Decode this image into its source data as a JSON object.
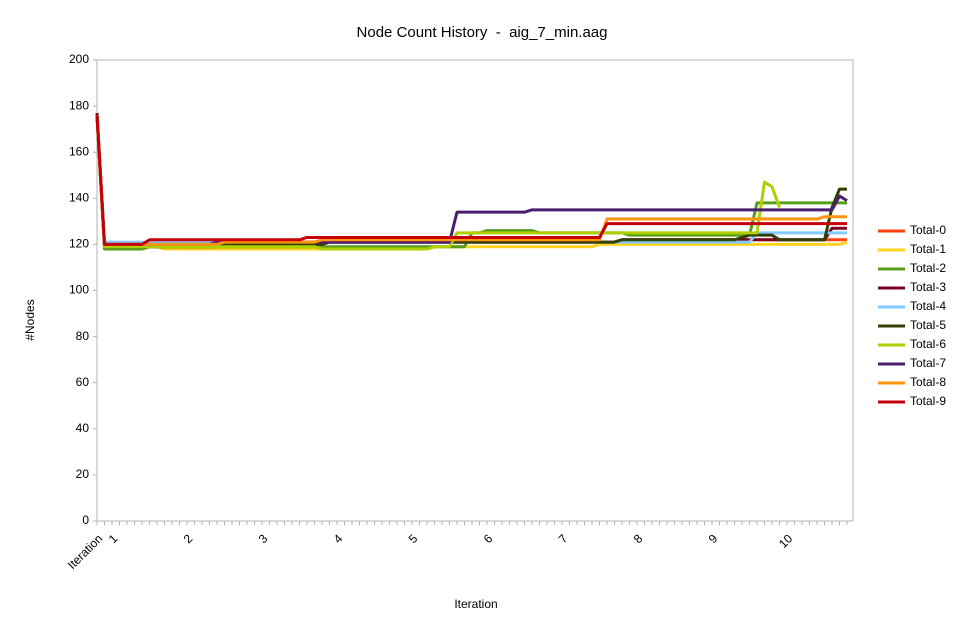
{
  "chart_data": {
    "type": "line",
    "title": "Node Count History  -  aig_7_min.aag",
    "x_label": "Iteration",
    "y_label": "#Nodes",
    "categories": [
      "Iteration",
      null,
      "1",
      null,
      null,
      null,
      null,
      null,
      null,
      null,
      null,
      null,
      "2",
      null,
      null,
      null,
      null,
      null,
      null,
      null,
      null,
      null,
      "3",
      null,
      null,
      null,
      null,
      null,
      null,
      null,
      null,
      null,
      "4",
      null,
      null,
      null,
      null,
      null,
      null,
      null,
      null,
      null,
      "5",
      null,
      null,
      null,
      null,
      null,
      null,
      null,
      null,
      null,
      "6",
      null,
      null,
      null,
      null,
      null,
      null,
      null,
      null,
      null,
      "7",
      null,
      null,
      null,
      null,
      null,
      null,
      null,
      null,
      null,
      "8",
      null,
      null,
      null,
      null,
      null,
      null,
      null,
      null,
      null,
      "9",
      null,
      null,
      null,
      null,
      null,
      null,
      null,
      null,
      null,
      "10",
      null,
      null,
      null,
      null,
      null,
      null,
      null,
      null
    ],
    "ylim": [
      0,
      200
    ],
    "yticks": [
      0,
      20,
      40,
      60,
      80,
      100,
      120,
      140,
      160,
      180,
      200
    ],
    "grid": false,
    "legend": "right",
    "series": [
      {
        "name": "Total-0",
        "color": "#ff420e",
        "values": [
          176,
          120,
          120,
          120,
          120,
          120,
          120,
          121,
          121,
          121,
          121,
          121,
          121,
          121,
          121,
          121,
          121,
          121,
          121,
          121,
          121,
          121,
          121,
          121,
          121,
          121,
          121,
          121,
          121,
          121,
          121,
          121,
          121,
          121,
          121,
          121,
          121,
          121,
          121,
          121,
          121,
          121,
          121,
          121,
          121,
          121,
          121,
          121,
          121,
          121,
          121,
          121,
          121,
          121,
          121,
          121,
          121,
          121,
          121,
          121,
          121,
          121,
          121,
          121,
          121,
          121,
          121,
          121,
          121,
          121,
          122,
          122,
          122,
          122,
          122,
          122,
          122,
          122,
          122,
          122,
          122,
          122,
          122,
          122,
          122,
          122,
          122,
          122,
          122,
          122,
          122,
          122,
          122,
          122,
          122,
          122,
          122,
          122,
          122,
          122,
          122
        ]
      },
      {
        "name": "Total-1",
        "color": "#ffd320",
        "values": [
          175,
          119,
          119,
          119,
          119,
          119,
          119,
          119,
          119,
          118,
          118,
          118,
          118,
          118,
          118,
          118,
          118,
          118,
          118,
          118,
          118,
          118,
          118,
          118,
          118,
          118,
          118,
          118,
          118,
          118,
          118,
          118,
          118,
          118,
          118,
          118,
          118,
          118,
          118,
          118,
          118,
          118,
          118,
          118,
          118,
          119,
          119,
          119,
          119,
          119,
          119,
          119,
          119,
          119,
          119,
          119,
          119,
          119,
          119,
          119,
          119,
          119,
          119,
          119,
          119,
          119,
          119,
          120,
          120,
          120,
          120,
          120,
          120,
          120,
          120,
          120,
          120,
          120,
          120,
          120,
          120,
          120,
          120,
          120,
          120,
          120,
          120,
          120,
          120,
          120,
          120,
          120,
          120,
          120,
          120,
          120,
          120,
          120,
          120,
          120,
          121
        ]
      },
      {
        "name": "Total-2",
        "color": "#579d1c",
        "values": [
          176,
          118,
          118,
          118,
          118,
          118,
          118,
          119,
          119,
          119,
          119,
          119,
          119,
          119,
          119,
          119,
          119,
          119,
          119,
          119,
          119,
          119,
          119,
          119,
          119,
          119,
          119,
          119,
          119,
          119,
          119,
          119,
          119,
          119,
          119,
          119,
          119,
          119,
          119,
          119,
          119,
          119,
          119,
          119,
          119,
          119,
          119,
          119,
          119,
          119,
          125,
          125,
          126,
          126,
          126,
          126,
          126,
          126,
          126,
          125,
          125,
          125,
          125,
          125,
          125,
          125,
          125,
          125,
          125,
          125,
          125,
          124,
          124,
          124,
          124,
          124,
          124,
          124,
          124,
          124,
          124,
          124,
          124,
          124,
          124,
          124,
          124,
          124,
          138,
          138,
          138,
          138,
          138,
          138,
          138,
          138,
          138,
          138,
          138,
          138,
          138
        ]
      },
      {
        "name": "Total-3",
        "color": "#7e0021",
        "values": [
          177,
          120,
          120,
          120,
          120,
          120,
          120,
          121,
          121,
          121,
          121,
          121,
          121,
          121,
          121,
          121,
          121,
          121,
          121,
          121,
          121,
          121,
          121,
          121,
          121,
          121,
          121,
          121,
          121,
          121,
          121,
          121,
          121,
          121,
          121,
          121,
          121,
          121,
          121,
          121,
          121,
          121,
          121,
          121,
          121,
          121,
          121,
          121,
          121,
          121,
          121,
          121,
          121,
          121,
          121,
          121,
          121,
          121,
          121,
          121,
          121,
          121,
          121,
          121,
          121,
          121,
          121,
          121,
          121,
          121,
          122,
          122,
          122,
          122,
          122,
          122,
          122,
          122,
          122,
          122,
          122,
          122,
          122,
          122,
          122,
          122,
          122,
          122,
          122,
          122,
          122,
          122,
          122,
          122,
          122,
          122,
          122,
          122,
          127,
          127,
          127
        ]
      },
      {
        "name": "Total-4",
        "color": "#83caff",
        "values": [
          176,
          121,
          121,
          121,
          121,
          121,
          121,
          121,
          121,
          121,
          121,
          121,
          121,
          121,
          121,
          121,
          121,
          121,
          121,
          121,
          121,
          121,
          121,
          121,
          121,
          121,
          121,
          121,
          121,
          121,
          121,
          121,
          121,
          121,
          121,
          121,
          121,
          121,
          121,
          121,
          121,
          121,
          121,
          121,
          121,
          121,
          121,
          121,
          121,
          121,
          121,
          121,
          121,
          121,
          121,
          121,
          121,
          121,
          121,
          121,
          121,
          121,
          121,
          121,
          121,
          121,
          121,
          121,
          121,
          121,
          121,
          121,
          121,
          121,
          121,
          121,
          121,
          121,
          121,
          121,
          121,
          121,
          121,
          121,
          121,
          121,
          121,
          121,
          125,
          125,
          125,
          125,
          125,
          125,
          125,
          125,
          125,
          125,
          125,
          125,
          125
        ]
      },
      {
        "name": "Total-5",
        "color": "#314004",
        "values": [
          176,
          119,
          119,
          119,
          119,
          119,
          119,
          119,
          119,
          119,
          119,
          119,
          119,
          119,
          119,
          119,
          119,
          120,
          120,
          120,
          120,
          120,
          120,
          120,
          120,
          120,
          120,
          120,
          120,
          120,
          120,
          121,
          121,
          121,
          121,
          121,
          121,
          121,
          121,
          121,
          121,
          121,
          121,
          121,
          121,
          121,
          121,
          121,
          121,
          121,
          121,
          121,
          121,
          121,
          121,
          121,
          121,
          121,
          121,
          121,
          121,
          121,
          121,
          121,
          121,
          121,
          121,
          121,
          121,
          121,
          122,
          122,
          122,
          122,
          122,
          122,
          122,
          122,
          122,
          122,
          122,
          122,
          122,
          122,
          122,
          122,
          123,
          124,
          124,
          124,
          124,
          122,
          122,
          122,
          122,
          122,
          122,
          122,
          136,
          144,
          144
        ]
      },
      {
        "name": "Total-6",
        "color": "#aecf00",
        "values": [
          176,
          119,
          119,
          119,
          119,
          119,
          119,
          119,
          119,
          119,
          119,
          119,
          119,
          119,
          119,
          119,
          119,
          119,
          119,
          119,
          119,
          119,
          119,
          119,
          119,
          119,
          119,
          119,
          119,
          119,
          118,
          118,
          118,
          118,
          118,
          118,
          118,
          118,
          118,
          118,
          118,
          118,
          118,
          118,
          118,
          119,
          119,
          119,
          125,
          125,
          125,
          125,
          125,
          125,
          125,
          125,
          125,
          125,
          125,
          125,
          125,
          125,
          125,
          125,
          125,
          125,
          125,
          125,
          125,
          125,
          125,
          125,
          125,
          125,
          125,
          125,
          125,
          125,
          125,
          125,
          125,
          125,
          125,
          125,
          125,
          125,
          125,
          125,
          125,
          147,
          145,
          136,
          null,
          null,
          null,
          null,
          null,
          null,
          null,
          null,
          null
        ]
      },
      {
        "name": "Total-7",
        "color": "#4b1f6f",
        "values": [
          176,
          120,
          120,
          120,
          120,
          120,
          120,
          120,
          120,
          120,
          120,
          120,
          120,
          120,
          120,
          120,
          121,
          121,
          121,
          121,
          121,
          121,
          121,
          121,
          121,
          121,
          121,
          121,
          121,
          121,
          121,
          121,
          121,
          121,
          121,
          121,
          121,
          121,
          121,
          121,
          121,
          121,
          121,
          121,
          121,
          121,
          121,
          121,
          134,
          134,
          134,
          134,
          134,
          134,
          134,
          134,
          134,
          134,
          135,
          135,
          135,
          135,
          135,
          135,
          135,
          135,
          135,
          135,
          135,
          135,
          135,
          135,
          135,
          135,
          135,
          135,
          135,
          135,
          135,
          135,
          135,
          135,
          135,
          135,
          135,
          135,
          135,
          135,
          135,
          135,
          135,
          135,
          135,
          135,
          135,
          135,
          135,
          135,
          135,
          141,
          139
        ]
      },
      {
        "name": "Total-8",
        "color": "#ff950e",
        "values": [
          176,
          120,
          120,
          120,
          120,
          120,
          120,
          120,
          120,
          120,
          120,
          120,
          120,
          120,
          120,
          120,
          120,
          121,
          121,
          121,
          121,
          121,
          121,
          121,
          121,
          121,
          121,
          121,
          121,
          121,
          122,
          122,
          122,
          122,
          122,
          122,
          122,
          122,
          122,
          122,
          122,
          122,
          122,
          122,
          122,
          122,
          122,
          122,
          122,
          122,
          122,
          122,
          122,
          122,
          122,
          122,
          122,
          122,
          122,
          122,
          122,
          122,
          122,
          122,
          122,
          122,
          122,
          122,
          131,
          131,
          131,
          131,
          131,
          131,
          131,
          131,
          131,
          131,
          131,
          131,
          131,
          131,
          131,
          131,
          131,
          131,
          131,
          131,
          131,
          131,
          131,
          131,
          131,
          131,
          131,
          131,
          131,
          132,
          132,
          132,
          132
        ]
      },
      {
        "name": "Total-9",
        "color": "#c5000b",
        "values": [
          176,
          120,
          120,
          120,
          120,
          120,
          120,
          122,
          122,
          122,
          122,
          122,
          122,
          122,
          122,
          122,
          122,
          122,
          122,
          122,
          122,
          122,
          122,
          122,
          122,
          122,
          122,
          122,
          123,
          123,
          123,
          123,
          123,
          123,
          123,
          123,
          123,
          123,
          123,
          123,
          123,
          123,
          123,
          123,
          123,
          123,
          123,
          123,
          123,
          123,
          123,
          123,
          123,
          123,
          123,
          123,
          123,
          123,
          123,
          123,
          123,
          123,
          123,
          123,
          123,
          123,
          123,
          123,
          129,
          129,
          129,
          129,
          129,
          129,
          129,
          129,
          129,
          129,
          129,
          129,
          129,
          129,
          129,
          129,
          129,
          129,
          129,
          129,
          129,
          129,
          129,
          129,
          129,
          129,
          129,
          129,
          129,
          129,
          129,
          129,
          129
        ]
      }
    ]
  }
}
